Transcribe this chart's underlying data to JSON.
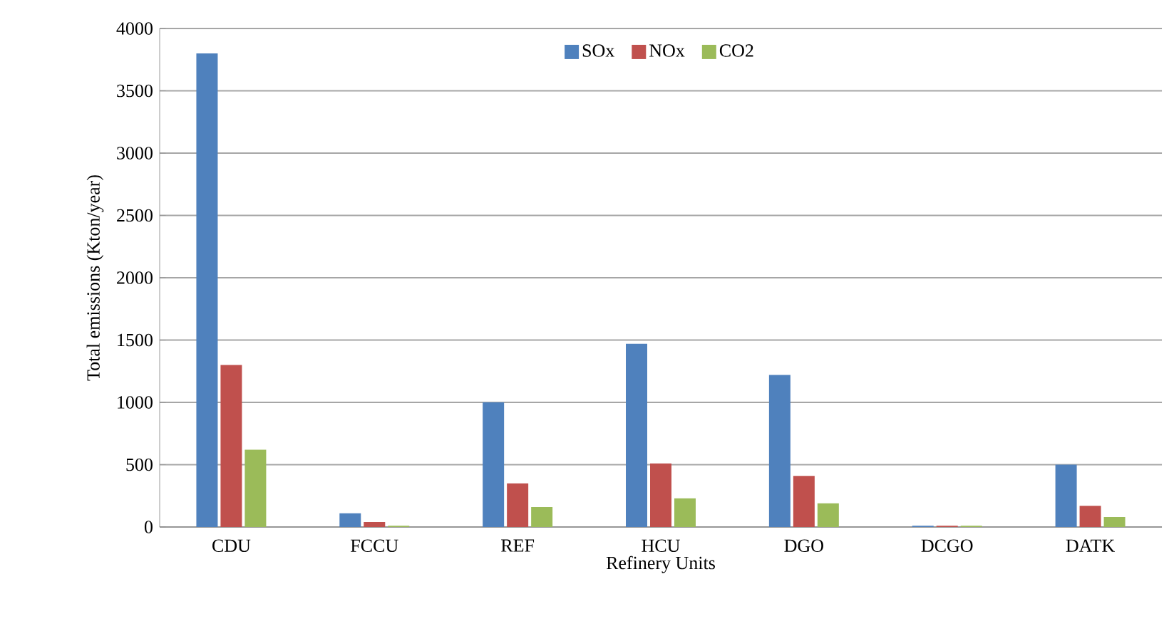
{
  "chart_data": {
    "type": "bar",
    "xlabel": "Refinery Units",
    "ylabel": "Total emissions (Kton/year)",
    "categories": [
      "CDU",
      "FCCU",
      "REF",
      "HCU",
      "DGO",
      "DCGO",
      "DATK"
    ],
    "series": [
      {
        "name": "SOx",
        "color": "#4f81bd",
        "values": [
          3800,
          110,
          1000,
          1470,
          1220,
          10,
          500
        ]
      },
      {
        "name": "NOx",
        "color": "#c0504d",
        "values": [
          1300,
          40,
          350,
          510,
          410,
          10,
          170
        ]
      },
      {
        "name": "CO2",
        "color": "#9bbb59",
        "values": [
          620,
          10,
          160,
          230,
          190,
          10,
          80
        ]
      }
    ],
    "ylim": [
      0,
      4000
    ],
    "yticks": [
      0,
      500,
      1000,
      1500,
      2000,
      2500,
      3000,
      3500,
      4000
    ],
    "grid": "y",
    "legend": "top"
  }
}
